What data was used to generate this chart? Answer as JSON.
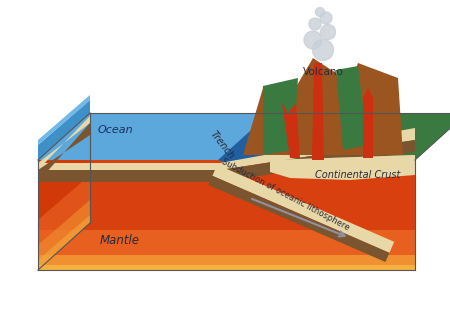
{
  "labels": {
    "ocean": "Ocean",
    "trench": "Trench",
    "subduction": "Subduction of oceanic lithosphere",
    "continental_crust": "Continental Crust",
    "mantle": "Mantle",
    "volcano": "Volcano"
  },
  "colors": {
    "background": "#ffffff",
    "mantle_red": "#d94010",
    "mantle_orange": "#e86020",
    "mantle_yellow_orange": "#f09030",
    "mantle_yellow": "#f5b040",
    "ocean_blue_light": "#70b8e8",
    "ocean_blue_mid": "#4090c8",
    "ocean_blue_dark": "#2060a0",
    "ocean_crust_dark": "#7a5530",
    "ocean_crust_light": "#e8d8a8",
    "continental_crust_beige": "#e8d8a8",
    "green_top": "#3a7a40",
    "green_dark": "#2d6535",
    "volcano_brown": "#9b5520",
    "volcano_dark_brown": "#7a3d10",
    "magma_red": "#cc3010",
    "arrow_gray": "#9090a0",
    "smoke_gray": "#c8d0d8",
    "label_dark": "#2a2a3a",
    "label_ocean": "#1a3060",
    "side_mantle": "#c83000"
  },
  "figsize": [
    4.5,
    3.18
  ],
  "dpi": 100
}
